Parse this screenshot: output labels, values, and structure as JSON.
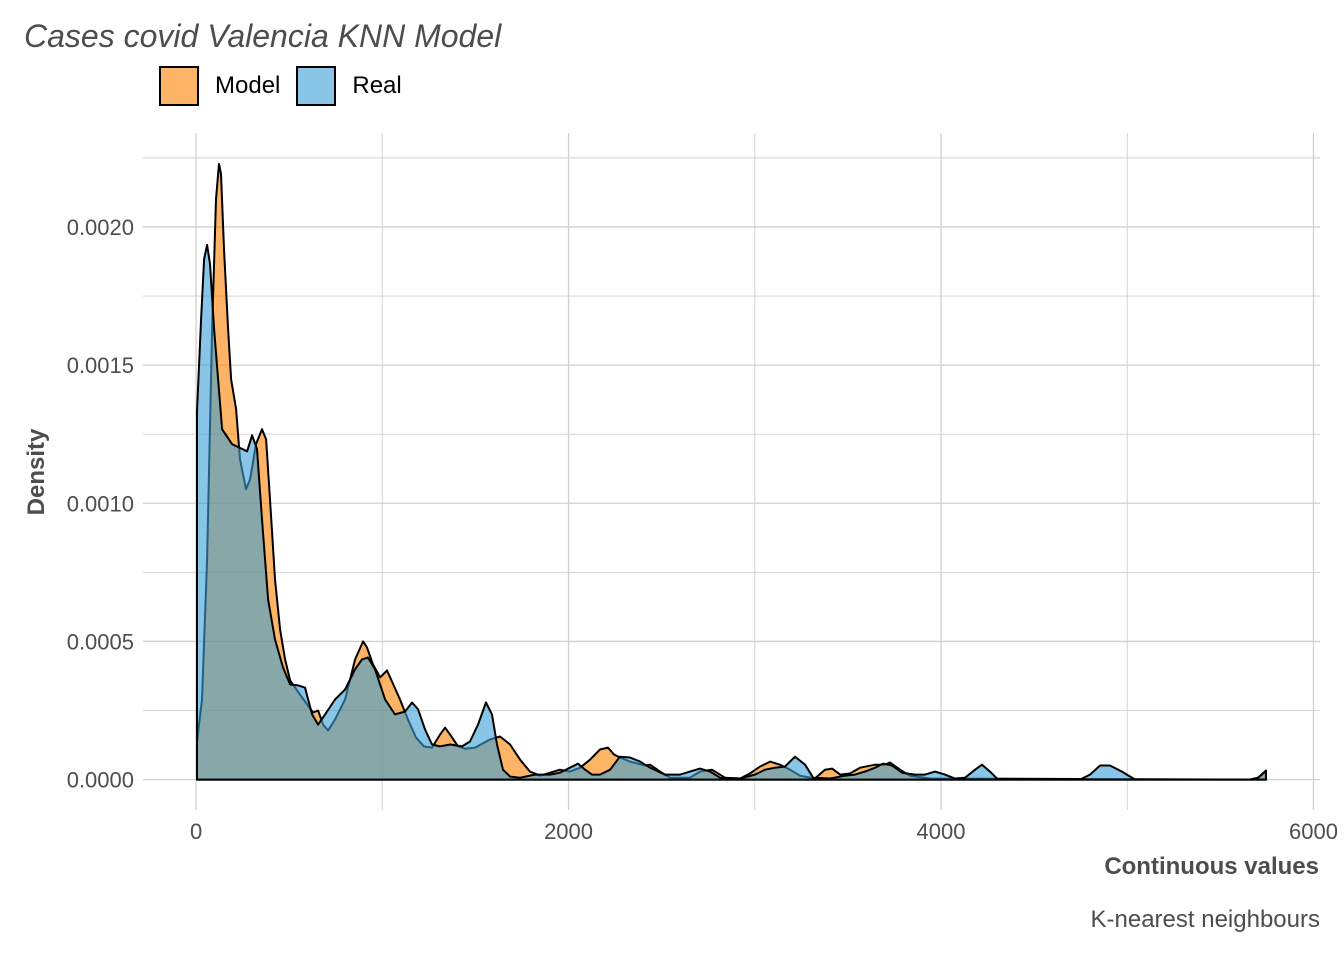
{
  "chart_data": {
    "type": "area",
    "subtype": "density",
    "title": "Cases covid Valencia KNN Model",
    "xlabel": "Continuous values",
    "ylabel": "Density",
    "caption": "K-nearest neighbours",
    "xlim": [
      -285,
      6035
    ],
    "ylim": [
      -0.00011,
      0.00234
    ],
    "x_ticks": [
      0,
      2000,
      4000,
      6000
    ],
    "x_tick_labels": [
      "0",
      "2000",
      "4000",
      "6000"
    ],
    "y_ticks": [
      0,
      0.0005,
      0.001,
      0.0015,
      0.002
    ],
    "y_tick_labels": [
      "0.0000",
      "0.0005",
      "0.0010",
      "0.0015",
      "0.0020"
    ],
    "grid": true,
    "legend_position": "top-left",
    "series": [
      {
        "name": "Model",
        "color": "#fc8200",
        "opacity": 0.6,
        "points": [
          [
            5,
            0.000138
          ],
          [
            32,
            0.00029
          ],
          [
            59,
            0.000797
          ],
          [
            86,
            0.00163
          ],
          [
            107,
            0.002101
          ],
          [
            123,
            0.002228
          ],
          [
            134,
            0.002192
          ],
          [
            150,
            0.00192
          ],
          [
            172,
            0.00163
          ],
          [
            188,
            0.001449
          ],
          [
            215,
            0.001341
          ],
          [
            236,
            0.001159
          ],
          [
            268,
            0.001051
          ],
          [
            290,
            0.001087
          ],
          [
            322,
            0.001214
          ],
          [
            354,
            0.001268
          ],
          [
            376,
            0.001232
          ],
          [
            397,
            0.001014
          ],
          [
            424,
            0.000725
          ],
          [
            451,
            0.000543
          ],
          [
            478,
            0.000435
          ],
          [
            505,
            0.000359
          ],
          [
            558,
            0.000308
          ],
          [
            628,
            0.000243
          ],
          [
            655,
            0.00025
          ],
          [
            682,
            0.000199
          ],
          [
            709,
            0.000178
          ],
          [
            746,
            0.000217
          ],
          [
            800,
            0.00029
          ],
          [
            854,
            0.000435
          ],
          [
            897,
            0.0005
          ],
          [
            918,
            0.000478
          ],
          [
            950,
            0.000417
          ],
          [
            988,
            0.00037
          ],
          [
            1025,
            0.000395
          ],
          [
            1052,
            0.000355
          ],
          [
            1095,
            0.00029
          ],
          [
            1138,
            0.000217
          ],
          [
            1181,
            0.000152
          ],
          [
            1224,
            0.00012
          ],
          [
            1267,
            0.000116
          ],
          [
            1310,
            0.000163
          ],
          [
            1337,
            0.000188
          ],
          [
            1364,
            0.000163
          ],
          [
            1407,
            0.00012
          ],
          [
            1444,
            0.000112
          ],
          [
            1498,
            0.000116
          ],
          [
            1578,
            0.000145
          ],
          [
            1632,
            0.000156
          ],
          [
            1686,
            0.000127
          ],
          [
            1740,
            7.2e-05
          ],
          [
            1793,
            2.9e-05
          ],
          [
            1847,
            1.4e-05
          ],
          [
            1901,
            2.5e-05
          ],
          [
            1954,
            3.6e-05
          ],
          [
            2008,
            2.9e-05
          ],
          [
            2062,
            4.3e-05
          ],
          [
            2115,
            7.2e-05
          ],
          [
            2169,
            0.000109
          ],
          [
            2212,
            0.000116
          ],
          [
            2244,
            9.1e-05
          ],
          [
            2276,
            8e-05
          ],
          [
            2330,
            6.5e-05
          ],
          [
            2411,
            5.1e-05
          ],
          [
            2438,
            5.4e-05
          ],
          [
            2491,
            2.9e-05
          ],
          [
            2545,
            7e-06
          ],
          [
            2652,
            7e-06
          ],
          [
            2706,
            2.9e-05
          ],
          [
            2770,
            3.6e-05
          ],
          [
            2840,
            7e-06
          ],
          [
            2921,
            4e-06
          ],
          [
            2974,
            2.2e-05
          ],
          [
            3028,
            4.7e-05
          ],
          [
            3082,
            6.5e-05
          ],
          [
            3135,
            5.4e-05
          ],
          [
            3189,
            3.6e-05
          ],
          [
            3243,
            1.4e-05
          ],
          [
            3323,
            4e-06
          ],
          [
            3377,
            3.6e-05
          ],
          [
            3415,
            4e-05
          ],
          [
            3458,
            1.8e-05
          ],
          [
            3511,
            2.2e-05
          ],
          [
            3565,
            4.3e-05
          ],
          [
            3646,
            5.4e-05
          ],
          [
            3699,
            5.4e-05
          ],
          [
            3726,
            6.2e-05
          ],
          [
            3780,
            3.6e-05
          ],
          [
            3833,
            1.4e-05
          ],
          [
            3941,
            4e-06
          ],
          [
            5659,
            0.0
          ],
          [
            5702,
            7e-06
          ],
          [
            5745,
            2.9e-05
          ]
        ]
      },
      {
        "name": "Real",
        "color": "#3a9ed5",
        "opacity": 0.6,
        "points": [
          [
            5,
            0.001333
          ],
          [
            27,
            0.001667
          ],
          [
            43,
            0.001884
          ],
          [
            59,
            0.001935
          ],
          [
            75,
            0.001866
          ],
          [
            97,
            0.00163
          ],
          [
            140,
            0.001268
          ],
          [
            193,
            0.001214
          ],
          [
            274,
            0.001188
          ],
          [
            301,
            0.001246
          ],
          [
            327,
            0.001196
          ],
          [
            354,
            0.000942
          ],
          [
            387,
            0.000652
          ],
          [
            424,
            0.000507
          ],
          [
            467,
            0.000406
          ],
          [
            505,
            0.000344
          ],
          [
            548,
            0.000341
          ],
          [
            585,
            0.000333
          ],
          [
            623,
            0.000236
          ],
          [
            655,
            0.000199
          ],
          [
            693,
            0.000236
          ],
          [
            746,
            0.00029
          ],
          [
            800,
            0.000326
          ],
          [
            854,
            0.000399
          ],
          [
            891,
            0.000435
          ],
          [
            923,
            0.000442
          ],
          [
            961,
            0.000399
          ],
          [
            1015,
            0.00029
          ],
          [
            1068,
            0.000236
          ],
          [
            1122,
            0.000246
          ],
          [
            1160,
            0.000279
          ],
          [
            1192,
            0.000254
          ],
          [
            1230,
            0.000181
          ],
          [
            1267,
            0.000127
          ],
          [
            1310,
            0.00012
          ],
          [
            1364,
            0.000127
          ],
          [
            1428,
            0.00012
          ],
          [
            1471,
            0.000138
          ],
          [
            1514,
            0.000199
          ],
          [
            1557,
            0.000279
          ],
          [
            1589,
            0.000236
          ],
          [
            1616,
            0.000127
          ],
          [
            1648,
            3.6e-05
          ],
          [
            1686,
            1.1e-05
          ],
          [
            1740,
            7e-06
          ],
          [
            1820,
            1.8e-05
          ],
          [
            1901,
            1.8e-05
          ],
          [
            1954,
            2.5e-05
          ],
          [
            2008,
            4.3e-05
          ],
          [
            2051,
            5.8e-05
          ],
          [
            2089,
            3.6e-05
          ],
          [
            2126,
            1.8e-05
          ],
          [
            2169,
            1.8e-05
          ],
          [
            2223,
            3.6e-05
          ],
          [
            2276,
            8.3e-05
          ],
          [
            2330,
            8e-05
          ],
          [
            2384,
            6.5e-05
          ],
          [
            2438,
            4.3e-05
          ],
          [
            2518,
            1.8e-05
          ],
          [
            2599,
            1.8e-05
          ],
          [
            2652,
            2.9e-05
          ],
          [
            2706,
            4e-05
          ],
          [
            2760,
            2.9e-05
          ],
          [
            2813,
            7e-06
          ],
          [
            2921,
            4e-06
          ],
          [
            3001,
            1.8e-05
          ],
          [
            3055,
            3.6e-05
          ],
          [
            3109,
            4.3e-05
          ],
          [
            3162,
            4.7e-05
          ],
          [
            3216,
            8.3e-05
          ],
          [
            3270,
            5.4e-05
          ],
          [
            3313,
            7e-06
          ],
          [
            3404,
            4e-06
          ],
          [
            3485,
            1.4e-05
          ],
          [
            3538,
            1.8e-05
          ],
          [
            3592,
            2.9e-05
          ],
          [
            3646,
            4.3e-05
          ],
          [
            3689,
            5.8e-05
          ],
          [
            3737,
            5.1e-05
          ],
          [
            3791,
            2.5e-05
          ],
          [
            3860,
            1.8e-05
          ],
          [
            3914,
            1.8e-05
          ],
          [
            3968,
            2.9e-05
          ],
          [
            4021,
            1.8e-05
          ],
          [
            4075,
            4e-06
          ],
          [
            4129,
            7e-06
          ],
          [
            4183,
            3.6e-05
          ],
          [
            4220,
            5.4e-05
          ],
          [
            4263,
            2.9e-05
          ],
          [
            4306,
            0.0
          ],
          [
            4746,
            0.0
          ],
          [
            4800,
            1.8e-05
          ],
          [
            4854,
            5.1e-05
          ],
          [
            4907,
            5.1e-05
          ],
          [
            4972,
            2.9e-05
          ],
          [
            5042,
            0.0
          ],
          [
            5659,
            0.0
          ],
          [
            5702,
            7e-06
          ],
          [
            5745,
            3.3e-05
          ]
        ]
      }
    ]
  }
}
